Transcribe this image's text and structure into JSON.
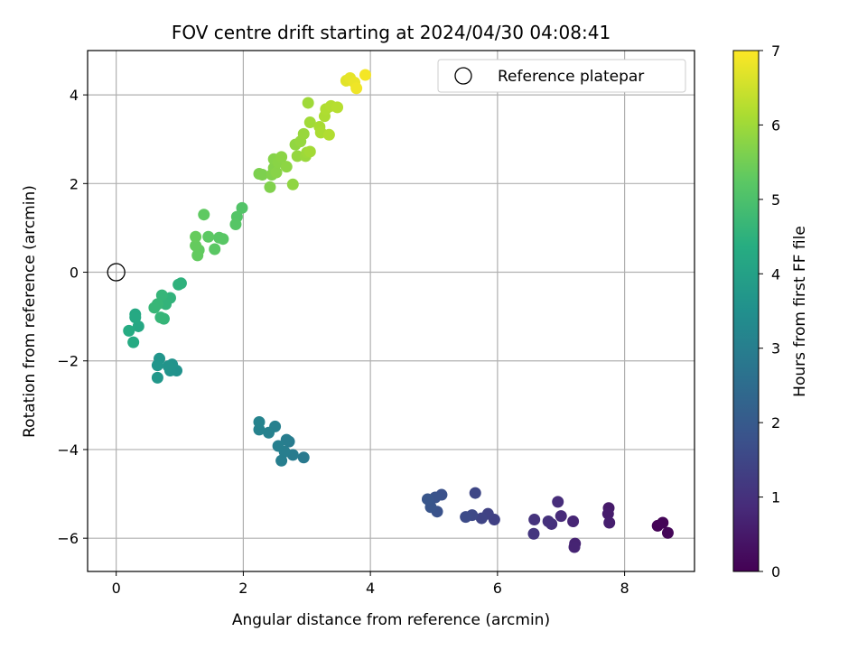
{
  "chart_data": {
    "type": "scatter",
    "title": "FOV centre drift starting at 2024/04/30 04:08:41",
    "xlabel": "Angular distance from reference (arcmin)",
    "ylabel": "Rotation from reference (arcmin)",
    "xlim": [
      -0.45,
      9.1
    ],
    "ylim": [
      -6.75,
      5.0
    ],
    "xticks": [
      0,
      2,
      4,
      6,
      8
    ],
    "yticks": [
      -6,
      -4,
      -2,
      0,
      2,
      4
    ],
    "grid": true,
    "legend": {
      "placement": "top-right",
      "entries": [
        "Reference platepar"
      ]
    },
    "reference_point": {
      "x": 0,
      "y": 0,
      "label": "Reference platepar"
    },
    "colorbar": {
      "label": "Hours from first FF file",
      "colormap": "viridis",
      "range": [
        0,
        7
      ],
      "ticks": [
        0,
        1,
        2,
        3,
        4,
        5,
        6,
        7
      ]
    },
    "points": [
      {
        "x": 8.52,
        "y": -5.72,
        "c": 0.05
      },
      {
        "x": 8.6,
        "y": -5.65,
        "c": 0.08
      },
      {
        "x": 8.68,
        "y": -5.88,
        "c": 0.1
      },
      {
        "x": 7.75,
        "y": -5.32,
        "c": 0.5
      },
      {
        "x": 7.74,
        "y": -5.45,
        "c": 0.55
      },
      {
        "x": 7.76,
        "y": -5.65,
        "c": 0.6
      },
      {
        "x": 7.22,
        "y": -6.12,
        "c": 0.7
      },
      {
        "x": 7.21,
        "y": -6.2,
        "c": 0.72
      },
      {
        "x": 7.19,
        "y": -5.62,
        "c": 0.75
      },
      {
        "x": 7.0,
        "y": -5.5,
        "c": 0.85
      },
      {
        "x": 6.95,
        "y": -5.18,
        "c": 0.9
      },
      {
        "x": 6.85,
        "y": -5.68,
        "c": 0.95
      },
      {
        "x": 6.8,
        "y": -5.62,
        "c": 1.0
      },
      {
        "x": 6.58,
        "y": -5.58,
        "c": 1.05
      },
      {
        "x": 6.57,
        "y": -5.9,
        "c": 1.1
      },
      {
        "x": 5.95,
        "y": -5.58,
        "c": 1.35
      },
      {
        "x": 5.85,
        "y": -5.45,
        "c": 1.4
      },
      {
        "x": 5.75,
        "y": -5.55,
        "c": 1.45
      },
      {
        "x": 5.65,
        "y": -4.98,
        "c": 1.5
      },
      {
        "x": 5.6,
        "y": -5.48,
        "c": 1.55
      },
      {
        "x": 5.5,
        "y": -5.52,
        "c": 1.6
      },
      {
        "x": 5.12,
        "y": -5.02,
        "c": 1.75
      },
      {
        "x": 5.05,
        "y": -5.4,
        "c": 1.78
      },
      {
        "x": 5.02,
        "y": -5.08,
        "c": 1.8
      },
      {
        "x": 4.95,
        "y": -5.3,
        "c": 1.85
      },
      {
        "x": 4.9,
        "y": -5.12,
        "c": 1.88
      },
      {
        "x": 2.95,
        "y": -4.18,
        "c": 2.85
      },
      {
        "x": 2.78,
        "y": -4.12,
        "c": 2.9
      },
      {
        "x": 2.72,
        "y": -3.82,
        "c": 2.92
      },
      {
        "x": 2.68,
        "y": -3.78,
        "c": 2.95
      },
      {
        "x": 2.65,
        "y": -4.05,
        "c": 2.98
      },
      {
        "x": 2.6,
        "y": -4.25,
        "c": 3.0
      },
      {
        "x": 2.55,
        "y": -3.92,
        "c": 3.02
      },
      {
        "x": 2.5,
        "y": -3.48,
        "c": 3.05
      },
      {
        "x": 2.4,
        "y": -3.62,
        "c": 3.08
      },
      {
        "x": 2.25,
        "y": -3.55,
        "c": 3.1
      },
      {
        "x": 2.25,
        "y": -3.38,
        "c": 3.12
      },
      {
        "x": 0.95,
        "y": -2.22,
        "c": 3.55
      },
      {
        "x": 0.88,
        "y": -2.08,
        "c": 3.58
      },
      {
        "x": 0.85,
        "y": -2.22,
        "c": 3.6
      },
      {
        "x": 0.82,
        "y": -2.12,
        "c": 3.62
      },
      {
        "x": 0.68,
        "y": -1.95,
        "c": 3.65
      },
      {
        "x": 0.65,
        "y": -2.1,
        "c": 3.68
      },
      {
        "x": 0.65,
        "y": -2.38,
        "c": 3.7
      },
      {
        "x": 0.35,
        "y": -1.22,
        "c": 4.2
      },
      {
        "x": 0.3,
        "y": -0.95,
        "c": 4.22
      },
      {
        "x": 0.3,
        "y": -1.02,
        "c": 4.25
      },
      {
        "x": 0.27,
        "y": -1.58,
        "c": 4.28
      },
      {
        "x": 0.2,
        "y": -1.32,
        "c": 4.3
      },
      {
        "x": 1.02,
        "y": -0.25,
        "c": 4.5
      },
      {
        "x": 0.98,
        "y": -0.28,
        "c": 4.52
      },
      {
        "x": 0.85,
        "y": -0.58,
        "c": 4.55
      },
      {
        "x": 0.78,
        "y": -0.72,
        "c": 4.58
      },
      {
        "x": 0.75,
        "y": -1.05,
        "c": 4.6
      },
      {
        "x": 0.72,
        "y": -0.52,
        "c": 4.62
      },
      {
        "x": 0.7,
        "y": -1.02,
        "c": 4.64
      },
      {
        "x": 0.65,
        "y": -0.72,
        "c": 4.66
      },
      {
        "x": 0.6,
        "y": -0.8,
        "c": 4.68
      },
      {
        "x": 1.98,
        "y": 1.45,
        "c": 5.1
      },
      {
        "x": 1.9,
        "y": 1.25,
        "c": 5.12
      },
      {
        "x": 1.88,
        "y": 1.08,
        "c": 5.15
      },
      {
        "x": 1.68,
        "y": 0.75,
        "c": 5.18
      },
      {
        "x": 1.62,
        "y": 0.78,
        "c": 5.2
      },
      {
        "x": 1.55,
        "y": 0.52,
        "c": 5.22
      },
      {
        "x": 1.45,
        "y": 0.8,
        "c": 5.25
      },
      {
        "x": 1.38,
        "y": 1.3,
        "c": 5.28
      },
      {
        "x": 1.3,
        "y": 0.5,
        "c": 5.3
      },
      {
        "x": 1.28,
        "y": 0.38,
        "c": 5.32
      },
      {
        "x": 1.25,
        "y": 0.6,
        "c": 5.34
      },
      {
        "x": 1.25,
        "y": 0.8,
        "c": 5.36
      },
      {
        "x": 2.25,
        "y": 2.22,
        "c": 5.6
      },
      {
        "x": 2.3,
        "y": 2.2,
        "c": 5.62
      },
      {
        "x": 2.42,
        "y": 1.92,
        "c": 5.65
      },
      {
        "x": 2.45,
        "y": 2.2,
        "c": 5.68
      },
      {
        "x": 2.48,
        "y": 2.35,
        "c": 5.7
      },
      {
        "x": 2.48,
        "y": 2.55,
        "c": 5.72
      },
      {
        "x": 2.52,
        "y": 2.25,
        "c": 5.74
      },
      {
        "x": 2.55,
        "y": 2.48,
        "c": 5.76
      },
      {
        "x": 2.6,
        "y": 2.6,
        "c": 5.78
      },
      {
        "x": 2.68,
        "y": 2.38,
        "c": 5.8
      },
      {
        "x": 2.78,
        "y": 1.98,
        "c": 5.82
      },
      {
        "x": 2.82,
        "y": 2.88,
        "c": 5.85
      },
      {
        "x": 2.85,
        "y": 2.62,
        "c": 5.88
      },
      {
        "x": 2.9,
        "y": 2.95,
        "c": 5.9
      },
      {
        "x": 2.95,
        "y": 3.12,
        "c": 5.92
      },
      {
        "x": 2.98,
        "y": 2.62,
        "c": 5.95
      },
      {
        "x": 3.0,
        "y": 2.7,
        "c": 5.98
      },
      {
        "x": 3.02,
        "y": 3.82,
        "c": 6.0
      },
      {
        "x": 3.05,
        "y": 3.38,
        "c": 6.02
      },
      {
        "x": 3.05,
        "y": 2.72,
        "c": 6.05
      },
      {
        "x": 3.2,
        "y": 3.28,
        "c": 6.1
      },
      {
        "x": 3.22,
        "y": 3.15,
        "c": 6.12
      },
      {
        "x": 3.28,
        "y": 3.52,
        "c": 6.15
      },
      {
        "x": 3.3,
        "y": 3.68,
        "c": 6.18
      },
      {
        "x": 3.35,
        "y": 3.1,
        "c": 6.2
      },
      {
        "x": 3.38,
        "y": 3.75,
        "c": 6.22
      },
      {
        "x": 3.48,
        "y": 3.72,
        "c": 6.25
      },
      {
        "x": 3.62,
        "y": 4.32,
        "c": 6.7
      },
      {
        "x": 3.68,
        "y": 4.38,
        "c": 6.75
      },
      {
        "x": 3.75,
        "y": 4.28,
        "c": 6.8
      },
      {
        "x": 3.78,
        "y": 4.15,
        "c": 6.85
      },
      {
        "x": 3.92,
        "y": 4.45,
        "c": 6.9
      }
    ]
  }
}
